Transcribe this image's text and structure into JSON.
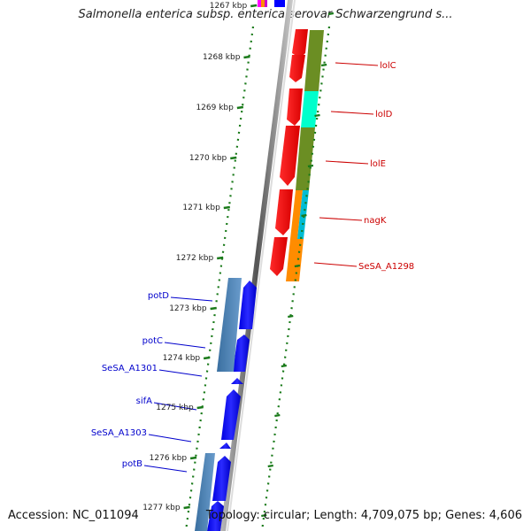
{
  "title": "Salmonella enterica subsp. enterica serovar Schwarzengrund s...",
  "footer": {
    "accession": "Accession: NC_011094",
    "stats": "Topology: circular; Length: 4,709,075 bp; Genes: 4,606"
  },
  "ticks": [
    "1267 kbp",
    "1268 kbp",
    "1269 kbp",
    "1270 kbp",
    "1271 kbp",
    "1272 kbp",
    "1273 kbp",
    "1274 kbp",
    "1275 kbp",
    "1276 kbp",
    "1277 kbp"
  ],
  "genes_forward": [
    {
      "label": "lolC",
      "color": "#cc0000"
    },
    {
      "label": "lolD",
      "color": "#cc0000"
    },
    {
      "label": "lolE",
      "color": "#cc0000"
    },
    {
      "label": "nagK",
      "color": "#cc0000"
    },
    {
      "label": "SeSA_A1298",
      "color": "#cc0000"
    }
  ],
  "genes_reverse": [
    {
      "label": "potD",
      "color": "#0000cc"
    },
    {
      "label": "potC",
      "color": "#0000cc"
    },
    {
      "label": "SeSA_A1301",
      "color": "#0000cc"
    },
    {
      "label": "sifA",
      "color": "#0000cc"
    },
    {
      "label": "SeSA_A1303",
      "color": "#0000cc"
    },
    {
      "label": "potB",
      "color": "#0000cc"
    }
  ],
  "colors": {
    "forward_gene": "#ff0000",
    "reverse_gene": "#0000ff",
    "cog_olive": "#6b8e23",
    "cog_aqua": "#00ffcc",
    "cog_orange": "#ff8c00",
    "cog_cyan": "#00bcd4",
    "cog_steel": "#4682b4",
    "tick_green": "#1a7a1a",
    "backbone": "#888888"
  }
}
